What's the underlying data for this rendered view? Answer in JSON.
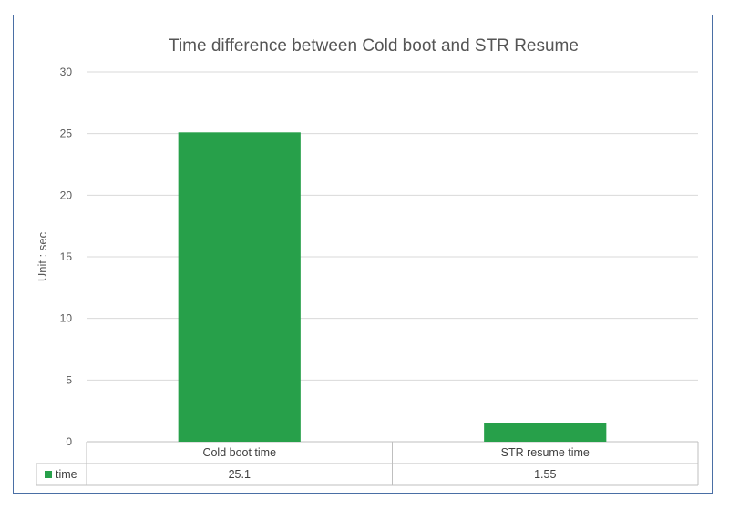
{
  "chart_data": {
    "type": "bar",
    "title": "Time difference between Cold boot and STR Resume",
    "xlabel": "",
    "ylabel": "Unit : sec",
    "categories": [
      "Cold boot time",
      "STR resume time"
    ],
    "series": [
      {
        "name": "time",
        "values": [
          25.1,
          1.55
        ],
        "color": "#27a04a"
      }
    ],
    "ylim": [
      0,
      30
    ],
    "yticks": [
      0,
      5,
      10,
      15,
      20,
      25,
      30
    ],
    "data_table": {
      "series_label": "time",
      "values_text": [
        "25.1",
        "1.55"
      ]
    },
    "grid": true,
    "legend": "data-table"
  }
}
